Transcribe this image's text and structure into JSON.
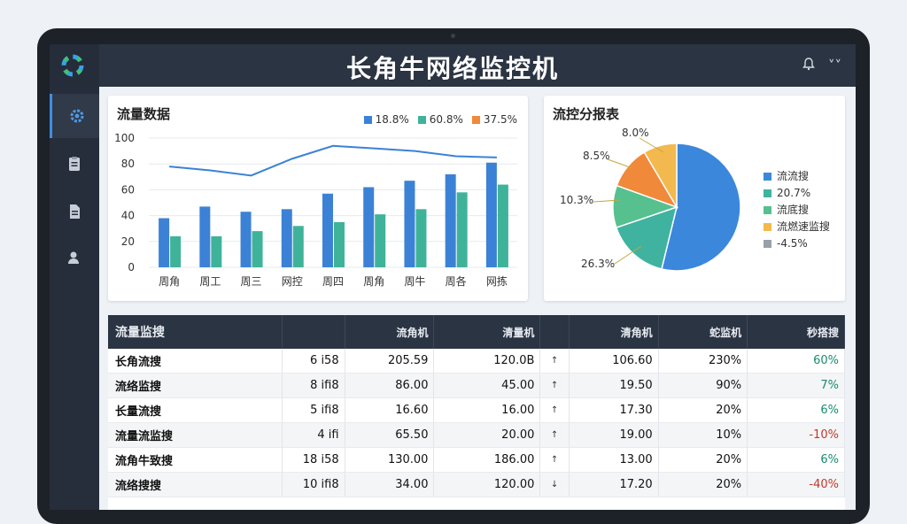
{
  "app": {
    "title": "长角牛网络监控机"
  },
  "sidebar": {
    "items": [
      {
        "icon": "gear-icon"
      },
      {
        "icon": "clipboard-icon"
      },
      {
        "icon": "document-icon"
      },
      {
        "icon": "user-icon"
      }
    ]
  },
  "traffic": {
    "title": "流量数据"
  },
  "distribution": {
    "title": "流控分报表"
  },
  "chart_data": [
    {
      "type": "bar",
      "title": "流量数据",
      "categories": [
        "周角",
        "周工",
        "周三",
        "网控",
        "周四",
        "周角",
        "周牛",
        "周各",
        "网拣"
      ],
      "ylim": [
        0,
        100
      ],
      "yticks": [
        "0",
        "20",
        "40",
        "60",
        "80",
        "100"
      ],
      "legend": [
        "18.8%",
        "60.8%",
        "37.5%"
      ],
      "series": [
        {
          "name": "18.8%",
          "color": "#3b82d6",
          "kind": "bar",
          "values": [
            38,
            47,
            43,
            45,
            57,
            62,
            67,
            72,
            81
          ]
        },
        {
          "name": "60.8%",
          "color": "#3fb39a",
          "kind": "bar",
          "values": [
            24,
            24,
            28,
            32,
            35,
            41,
            45,
            58,
            64
          ]
        },
        {
          "name": "37.5%",
          "color": "#3b82d6",
          "kind": "line",
          "values": [
            78,
            75,
            71,
            84,
            94,
            92,
            90,
            86,
            85
          ]
        }
      ],
      "grid": true
    },
    {
      "type": "pie",
      "title": "流控分报表",
      "labels": [
        "8.0%",
        "8.5%",
        "10.3%",
        "26.3%"
      ],
      "slices": [
        {
          "value": 53.8,
          "color": "#3b87dc"
        },
        {
          "value": 16.0,
          "color": "#3fb3a0"
        },
        {
          "value": 10.7,
          "color": "#56c08f"
        },
        {
          "value": 11.0,
          "color": "#f0893a"
        },
        {
          "value": 8.5,
          "color": "#f3b94f"
        }
      ],
      "legend": [
        {
          "label": "流流搜",
          "color": "#3b87dc"
        },
        {
          "label": "20.7%",
          "color": "#3fb3a0"
        },
        {
          "label": "流底搜",
          "color": "#56c08f"
        },
        {
          "label": "流燃速监搜",
          "color": "#f3b94f"
        },
        {
          "label": "-4.5%",
          "color": "#9aa0a8"
        }
      ]
    }
  ],
  "table": {
    "headers": [
      "流量监搜",
      "",
      "流角机",
      "清量机",
      "",
      "清角机",
      "蛇监机",
      "秒搭搜"
    ],
    "rows": [
      [
        "长角流搜",
        "6 i58",
        "205.59",
        "120.0B",
        "↑",
        "106.60",
        "230%",
        "60%"
      ],
      [
        "流络监搜",
        "8 ifi8",
        "86.00",
        "45.00",
        "↑",
        "19.50",
        "90%",
        "7%"
      ],
      [
        "长量流搜",
        "5 ifi8",
        "16.60",
        "16.00",
        "↑",
        "17.30",
        "20%",
        "6%"
      ],
      [
        "流量流监搜",
        "4 ifi",
        "65.50",
        "20.00",
        "↑",
        "19.00",
        "10%",
        "-10%"
      ],
      [
        "流角牛致搜",
        "18 i58",
        "130.00",
        "186.00",
        "↑",
        "13.00",
        "20%",
        "6%"
      ],
      [
        "流络搜搜",
        "10 ifi8",
        "34.00",
        "120.00",
        "↓",
        "17.20",
        "20%",
        "-40%"
      ]
    ]
  }
}
